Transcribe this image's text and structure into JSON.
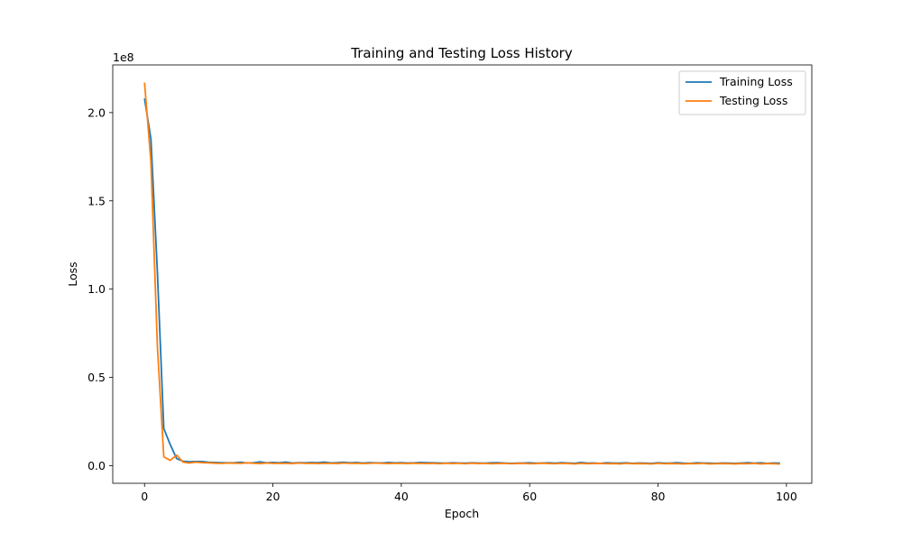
{
  "chart_data": {
    "type": "line",
    "title": "Training and Testing Loss History",
    "xlabel": "Epoch",
    "ylabel": "Loss",
    "y_offset_label": "1e8",
    "y_multiplier": 100000000,
    "xlim": [
      -4.95,
      103.95
    ],
    "ylim": [
      -10000000,
      227000000
    ],
    "xticks": [
      0,
      20,
      40,
      60,
      80,
      100
    ],
    "yticks": [
      0,
      50000000,
      100000000,
      150000000,
      200000000
    ],
    "ytick_labels": [
      "0.0",
      "0.5",
      "1.0",
      "1.5",
      "2.0"
    ],
    "grid": false,
    "legend_position": "upper right",
    "x": [
      0,
      1,
      2,
      3,
      4,
      5,
      6,
      7,
      8,
      9,
      10,
      11,
      12,
      13,
      14,
      15,
      16,
      17,
      18,
      19,
      20,
      21,
      22,
      23,
      24,
      25,
      26,
      27,
      28,
      29,
      30,
      31,
      32,
      33,
      34,
      35,
      36,
      37,
      38,
      39,
      40,
      41,
      42,
      43,
      44,
      45,
      46,
      47,
      48,
      49,
      50,
      51,
      52,
      53,
      54,
      55,
      56,
      57,
      58,
      59,
      60,
      61,
      62,
      63,
      64,
      65,
      66,
      67,
      68,
      69,
      70,
      71,
      72,
      73,
      74,
      75,
      76,
      77,
      78,
      79,
      80,
      81,
      82,
      83,
      84,
      85,
      86,
      87,
      88,
      89,
      90,
      91,
      92,
      93,
      94,
      95,
      96,
      97,
      98,
      99
    ],
    "series": [
      {
        "name": "Training Loss",
        "color": "#1f77b4",
        "values": [
          208000000,
          185000000,
          110000000,
          21000000,
          12000000,
          4000000,
          2500000,
          2200000,
          2400000,
          2300000,
          1900000,
          1800000,
          1700000,
          1600000,
          1700000,
          1900000,
          1500000,
          1700000,
          2100000,
          1600000,
          1800000,
          1700000,
          2000000,
          1500000,
          1700000,
          1600000,
          1800000,
          1700000,
          2000000,
          1600000,
          1700000,
          1900000,
          1600000,
          1800000,
          1500000,
          1700000,
          1600000,
          1500000,
          1800000,
          1600000,
          1700000,
          1500000,
          1600000,
          1800000,
          1700000,
          1600000,
          1500000,
          1400000,
          1600000,
          1500000,
          1400000,
          1600000,
          1500000,
          1400000,
          1600000,
          1700000,
          1500000,
          1300000,
          1400000,
          1500000,
          1600000,
          1400000,
          1500000,
          1600000,
          1400000,
          1700000,
          1500000,
          1300000,
          1800000,
          1400000,
          1500000,
          1300000,
          1600000,
          1500000,
          1400000,
          1600000,
          1300000,
          1500000,
          1400000,
          1300000,
          1600000,
          1400000,
          1500000,
          1700000,
          1400000,
          1300000,
          1600000,
          1500000,
          1400000,
          1300000,
          1500000,
          1400000,
          1300000,
          1500000,
          1700000,
          1400000,
          1600000,
          1300000,
          1500000,
          1400000
        ]
      },
      {
        "name": "Testing Loss",
        "color": "#ff7f0e",
        "values": [
          217000000,
          172000000,
          68000000,
          5000000,
          3000000,
          6000000,
          2000000,
          1500000,
          2000000,
          1700000,
          1600000,
          1400000,
          1300000,
          1500000,
          1400000,
          1300000,
          1600000,
          1400000,
          1200000,
          1500000,
          1300000,
          1400000,
          1300000,
          1200000,
          1500000,
          1300000,
          1400000,
          1200000,
          1300000,
          1400000,
          1200000,
          1500000,
          1300000,
          1400000,
          1200000,
          1300000,
          1500000,
          1300000,
          1200000,
          1400000,
          1300000,
          1200000,
          1400000,
          1300000,
          1200000,
          1300000,
          1100000,
          1400000,
          1200000,
          1300000,
          1100000,
          1400000,
          1200000,
          1300000,
          1100000,
          1200000,
          1300000,
          1100000,
          1200000,
          1300000,
          1100000,
          1200000,
          1400000,
          1200000,
          1100000,
          1300000,
          1200000,
          1000000,
          1300000,
          1100000,
          1200000,
          1300000,
          1100000,
          1200000,
          1000000,
          1300000,
          1100000,
          1200000,
          1100000,
          1000000,
          1300000,
          1100000,
          1200000,
          1100000,
          1000000,
          1200000,
          1100000,
          1300000,
          1000000,
          1100000,
          1200000,
          1100000,
          1000000,
          1200000,
          1100000,
          1300000,
          1000000,
          1200000,
          1100000,
          900000
        ]
      }
    ]
  }
}
